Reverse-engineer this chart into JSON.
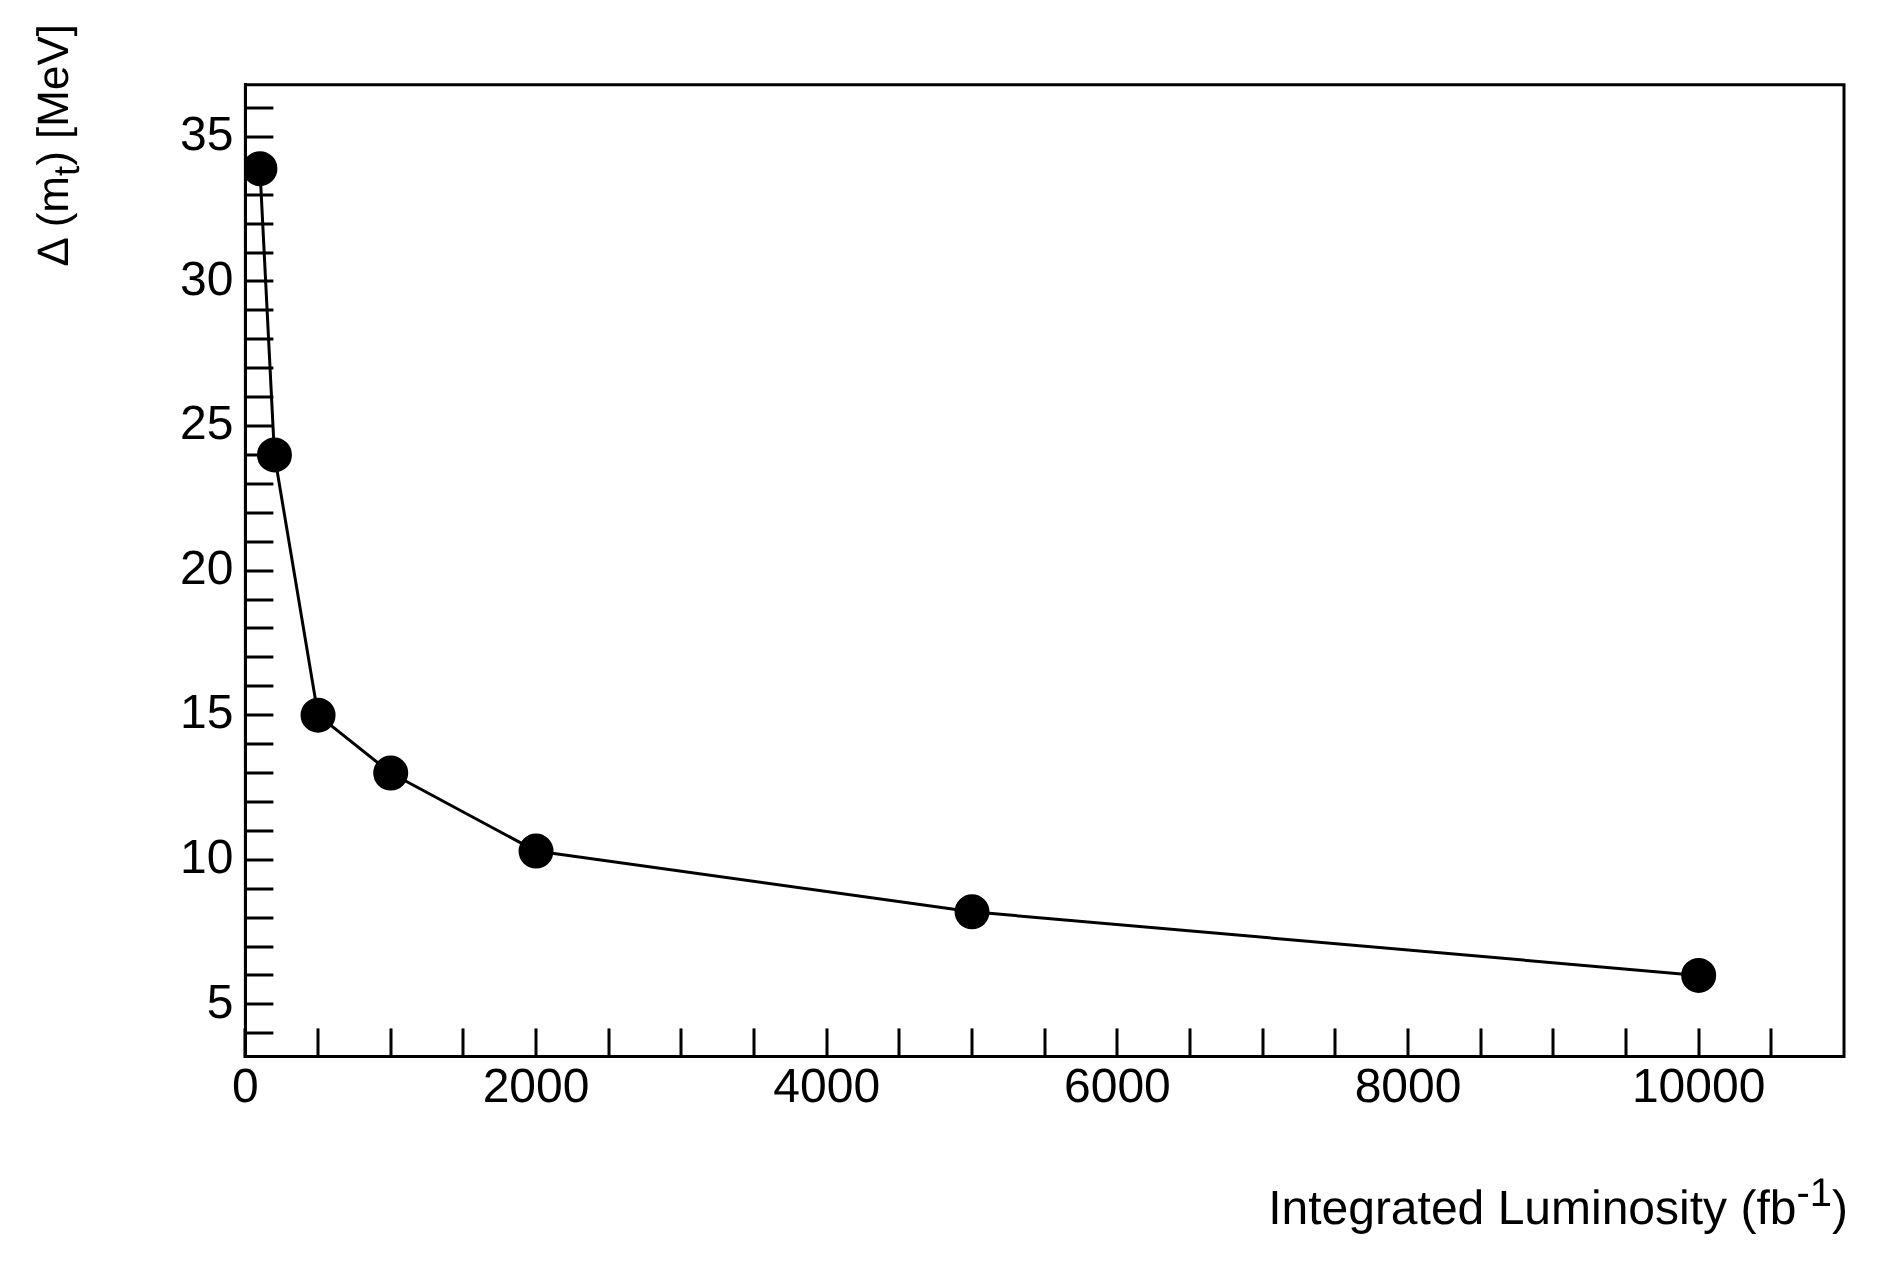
{
  "chart_data": {
    "type": "line",
    "xlabel": "Integrated Luminosity (fb$^{-1}$)",
    "ylabel": "Δ (m$_{t}$) [MeV]",
    "x": [
      100,
      200,
      500,
      1000,
      2000,
      5000,
      10000
    ],
    "series": [
      {
        "color": "#000000",
        "values": [
          33.9,
          24.0,
          15.0,
          13.0,
          10.3,
          8.2,
          6.0
        ]
      }
    ],
    "xlim": [
      0,
      11000
    ],
    "ylim": [
      3.2,
      36.8
    ],
    "xticks": [
      0,
      {
        "value": 500,
        "label": null
      },
      {
        "value": 1000,
        "label": null
      },
      {
        "value": 1500,
        "label": null
      },
      2000,
      {
        "value": 2500,
        "label": null
      },
      {
        "value": 3000,
        "label": null
      },
      {
        "value": 3500,
        "label": null
      },
      4000,
      {
        "value": 4500,
        "label": null
      },
      {
        "value": 5000,
        "label": null
      },
      {
        "value": 5500,
        "label": null
      },
      6000,
      {
        "value": 6500,
        "label": null
      },
      {
        "value": 7000,
        "label": null
      },
      {
        "value": 7500,
        "label": null
      },
      8000,
      {
        "value": 8500,
        "label": null
      },
      {
        "value": 9000,
        "label": null
      },
      {
        "value": 9500,
        "label": null
      },
      10000,
      {
        "value": 10500,
        "label": null
      }
    ],
    "yticks": [
      {
        "value": 4,
        "label": null
      },
      5,
      {
        "value": 6,
        "label": null
      },
      {
        "value": 7,
        "label": null
      },
      {
        "value": 8,
        "label": null
      },
      {
        "value": 9,
        "label": null
      },
      10,
      {
        "value": 11,
        "label": null
      },
      {
        "value": 12,
        "label": null
      },
      {
        "value": 13,
        "label": null
      },
      {
        "value": 14,
        "label": null
      },
      15,
      {
        "value": 16,
        "label": null
      },
      {
        "value": 17,
        "label": null
      },
      {
        "value": 18,
        "label": null
      },
      {
        "value": 19,
        "label": null
      },
      20,
      {
        "value": 21,
        "label": null
      },
      {
        "value": 22,
        "label": null
      },
      {
        "value": 23,
        "label": null
      },
      {
        "value": 24,
        "label": null
      },
      25,
      {
        "value": 26,
        "label": null
      },
      {
        "value": 27,
        "label": null
      },
      {
        "value": 28,
        "label": null
      },
      {
        "value": 29,
        "label": null
      },
      30,
      {
        "value": 31,
        "label": null
      },
      {
        "value": 32,
        "label": null
      },
      {
        "value": 33,
        "label": null
      },
      {
        "value": 34,
        "label": null
      },
      35,
      {
        "value": 36,
        "label": null
      }
    ],
    "grid": false,
    "legend": false,
    "marker": "circle",
    "line_style": "solid"
  }
}
